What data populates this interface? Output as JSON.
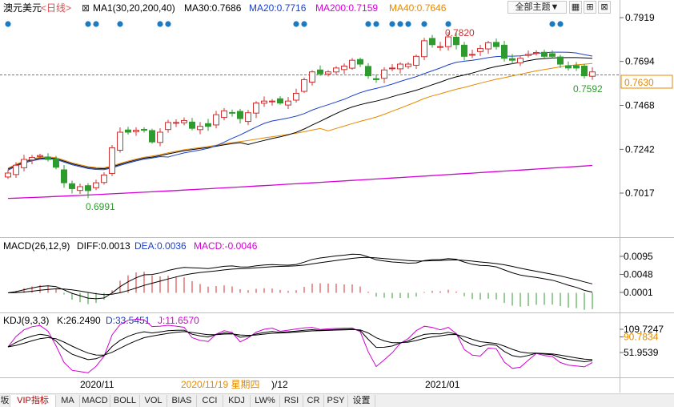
{
  "main": {
    "instrument": "澳元美元",
    "period": "<日线>",
    "ma_label": "MA1(30,20,200,40)",
    "ma30": "MA30:0.7686",
    "ma20": "MA20:0.7716",
    "ma200": "MA200:0.7159",
    "ma40": "MA40:0.7646",
    "theme_select": "全部主题",
    "price_ticks": [
      "0.7919",
      "0.7694",
      "0.7468",
      "0.7242",
      "0.7017"
    ],
    "current_price": "0.7630",
    "high_label": "0.7820",
    "low_label": "0.6991",
    "recent_low_label": "0.7592"
  },
  "macd": {
    "label": "MACD(26,12,9)",
    "diff": "DIFF:0.0013",
    "dea": "DEA:0.0036",
    "macd": "MACD:-0.0046",
    "ticks": [
      "0.0095",
      "0.0048",
      "0.0001"
    ]
  },
  "kdj": {
    "label": "KDJ(9,3,3)",
    "k": "K:26.2490",
    "d": "D:33.5451",
    "j": "J:11.6570",
    "ticks": [
      "109.7247",
      "90.7834",
      "51.9539"
    ]
  },
  "xaxis": {
    "labels": [
      "2020/11",
      "2020/11/19 星期四",
      ")/12",
      "2021/01"
    ]
  },
  "tabs": [
    "坂",
    "VIP指标",
    "MA",
    "MACD",
    "BOLL",
    "VOL",
    "BIAS",
    "CCI",
    "KDJ",
    "LW%",
    "RSI",
    "CR",
    "PSY",
    "设置"
  ],
  "colors": {
    "up": "#d03030",
    "down": "#2e9b2e",
    "ma30": "#000000",
    "ma20": "#1a3fd0",
    "ma200": "#d400d4",
    "ma40": "#e68a00"
  },
  "chart_data": [
    {
      "type": "candlestick",
      "title": "澳元美元 <日线>",
      "series": [
        {
          "name": "MA30",
          "last": 0.7686
        },
        {
          "name": "MA20",
          "last": 0.7716
        },
        {
          "name": "MA200",
          "last": 0.7159
        },
        {
          "name": "MA40",
          "last": 0.7646
        }
      ],
      "ylim": [
        0.693,
        0.793
      ],
      "y_ticks": [
        0.7919,
        0.7694,
        0.7468,
        0.7242,
        0.7017
      ],
      "annotations": [
        {
          "label": "0.7820",
          "value": 0.782
        },
        {
          "label": "0.6991",
          "value": 0.6991
        },
        {
          "label": "0.7592",
          "value": 0.7592
        },
        {
          "label": "0.7630",
          "value": 0.763
        }
      ],
      "x_labels": [
        "2020/11",
        "2021/01"
      ],
      "close": [
        0.712,
        0.716,
        0.719,
        0.72,
        0.721,
        0.719,
        0.715,
        0.707,
        0.704,
        0.705,
        0.703,
        0.707,
        0.711,
        0.725,
        0.733,
        0.733,
        0.734,
        0.734,
        0.728,
        0.733,
        0.738,
        0.738,
        0.739,
        0.735,
        0.736,
        0.736,
        0.742,
        0.744,
        0.743,
        0.74,
        0.743,
        0.748,
        0.749,
        0.749,
        0.748,
        0.749,
        0.753,
        0.76,
        0.764,
        0.763,
        0.764,
        0.766,
        0.767,
        0.77,
        0.768,
        0.762,
        0.76,
        0.765,
        0.766,
        0.768,
        0.768,
        0.772,
        0.78,
        0.778,
        0.777,
        0.782,
        0.778,
        0.772,
        0.773,
        0.776,
        0.779,
        0.777,
        0.771,
        0.77,
        0.771,
        0.773,
        0.774,
        0.772,
        0.772,
        0.768,
        0.766,
        0.766,
        0.762,
        0.764
      ],
      "macd": {
        "diff_last": 0.0013,
        "dea_last": 0.0036,
        "macd_last": -0.0046,
        "ylim": [
          -0.0028,
          0.0115
        ],
        "y_ticks": [
          0.0095,
          0.0048,
          0.0001
        ]
      },
      "kdj": {
        "k_last": 26.249,
        "d_last": 33.5451,
        "j_last": 11.657,
        "y_ticks": [
          109.7247,
          90.7834,
          51.9539
        ]
      }
    }
  ]
}
